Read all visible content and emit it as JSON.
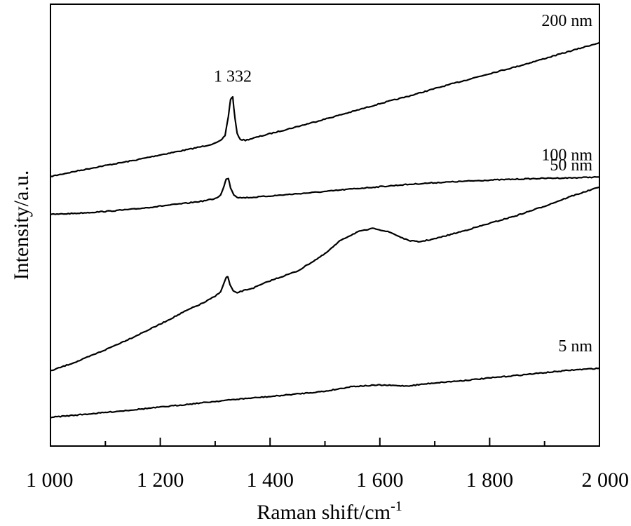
{
  "chart_data": {
    "type": "line",
    "xlabel": "Raman shift/cm",
    "xlabel_superscript": "-1",
    "ylabel": "Intensity/a.u.",
    "xlim": [
      1000,
      2000
    ],
    "ylim": [
      0,
      100
    ],
    "x_ticks": [
      1000,
      1200,
      1400,
      1600,
      1800,
      2000
    ],
    "x_tick_labels": [
      "1 000",
      "1 200",
      "1 400",
      "1 600",
      "1 800",
      "2 000"
    ],
    "x_minor_ticks": [
      1100,
      1300,
      1500,
      1700,
      1900
    ],
    "y_ticks_shown": false,
    "grid": false,
    "legend": "none",
    "annotations": [
      {
        "text": "1 332",
        "x": 1332,
        "y": 89
      }
    ],
    "series": [
      {
        "name": "200 nm",
        "x": [
          1000,
          1050,
          1100,
          1150,
          1200,
          1250,
          1280,
          1300,
          1310,
          1318,
          1324,
          1328,
          1332,
          1336,
          1340,
          1346,
          1355,
          1370,
          1400,
          1450,
          1500,
          1550,
          1600,
          1650,
          1700,
          1750,
          1800,
          1850,
          1900,
          1950,
          2000
        ],
        "y": [
          61,
          62.3,
          63.5,
          64.6,
          65.9,
          67.1,
          67.9,
          68.5,
          69.1,
          70.3,
          74.6,
          78.5,
          79,
          74.2,
          70.7,
          69.4,
          69.2,
          69.7,
          70.7,
          72.3,
          74,
          75.7,
          77.5,
          79.1,
          80.9,
          82.6,
          84.3,
          85.9,
          87.7,
          89.5,
          91.3
        ]
      },
      {
        "name": "100 nm",
        "x": [
          1000,
          1050,
          1100,
          1150,
          1200,
          1250,
          1280,
          1300,
          1310,
          1316,
          1320,
          1324,
          1328,
          1334,
          1342,
          1352,
          1370,
          1400,
          1450,
          1500,
          1550,
          1600,
          1650,
          1700,
          1750,
          1800,
          1850,
          1900,
          1950,
          2000
        ],
        "y": [
          52.4,
          52.7,
          53.1,
          53.6,
          54.3,
          55,
          55.5,
          56,
          56.8,
          58.7,
          60.5,
          60.6,
          58.5,
          56.9,
          56.2,
          56.2,
          56.3,
          56.6,
          57.1,
          57.6,
          58.2,
          58.7,
          59.2,
          59.6,
          59.9,
          60.2,
          60.4,
          60.6,
          60.7,
          60.9
        ]
      },
      {
        "name": "50 nm",
        "x": [
          1000,
          1050,
          1100,
          1150,
          1200,
          1250,
          1280,
          1300,
          1310,
          1316,
          1320,
          1323,
          1327,
          1333,
          1340,
          1352,
          1370,
          1400,
          1450,
          1500,
          1530,
          1560,
          1590,
          1620,
          1650,
          1670,
          1700,
          1750,
          1800,
          1850,
          1900,
          1950,
          2000
        ],
        "y": [
          17,
          19.2,
          21.8,
          24.6,
          27.6,
          30.8,
          32.5,
          33.9,
          35,
          36.8,
          38.2,
          38.3,
          36.5,
          35,
          34.7,
          35.2,
          35.8,
          37.4,
          39.6,
          43.5,
          46.7,
          48.5,
          49.3,
          48.3,
          46.6,
          46.2,
          46.9,
          48.6,
          50.4,
          52.2,
          54.3,
          56.6,
          58.6
        ]
      },
      {
        "name": "5 nm",
        "x": [
          1000,
          1100,
          1200,
          1300,
          1340,
          1400,
          1450,
          1500,
          1550,
          1600,
          1650,
          1700,
          1750,
          1800,
          1850,
          1900,
          1950,
          2000
        ],
        "y": [
          6.5,
          7.6,
          8.8,
          10.1,
          10.6,
          11.2,
          11.8,
          12.4,
          13.5,
          13.8,
          13.6,
          14.3,
          14.8,
          15.4,
          16,
          16.6,
          17.2,
          17.6
        ]
      }
    ]
  }
}
